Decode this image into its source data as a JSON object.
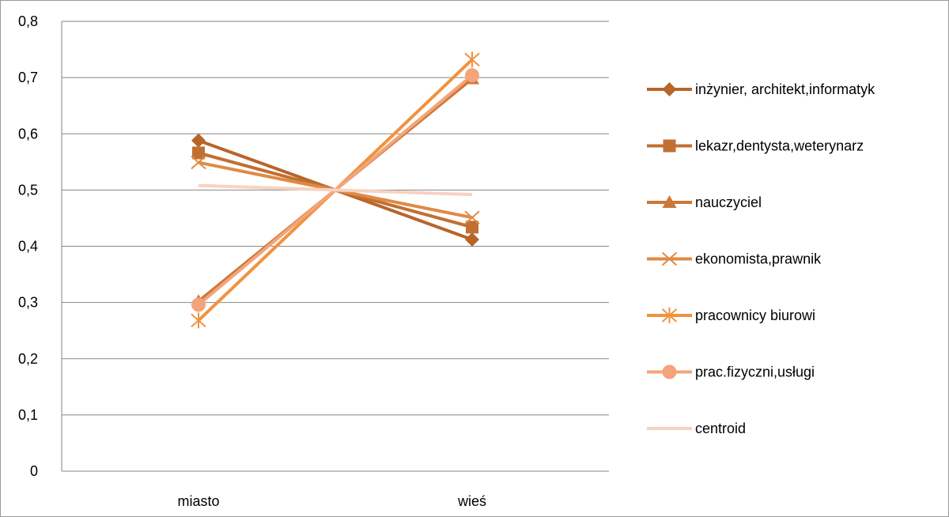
{
  "chart_data": {
    "type": "line",
    "title": "",
    "xlabel": "",
    "ylabel": "",
    "categories": [
      "miasto",
      "wieś"
    ],
    "ylim": [
      0,
      0.8
    ],
    "yticks": [
      0,
      0.1,
      0.2,
      0.3,
      0.4,
      0.5,
      0.6,
      0.7,
      0.8
    ],
    "ytick_labels": [
      "0",
      "0,1",
      "0,2",
      "0,3",
      "0,4",
      "0,5",
      "0,6",
      "0,7",
      "0,8"
    ],
    "grid": "horizontal",
    "legend_position": "right",
    "series": [
      {
        "name": "inżynier, architekt,informatyk",
        "values": [
          0.588,
          0.412
        ],
        "color": "#b8652a",
        "marker": "diamond"
      },
      {
        "name": "lekazr,dentysta,weterynarz",
        "values": [
          0.566,
          0.434
        ],
        "color": "#c26f32",
        "marker": "square"
      },
      {
        "name": "nauczyciel",
        "values": [
          0.302,
          0.698
        ],
        "color": "#cc7838",
        "marker": "triangle"
      },
      {
        "name": "ekonomista,prawnik",
        "values": [
          0.549,
          0.451
        ],
        "color": "#e08a44",
        "marker": "x"
      },
      {
        "name": "pracownicy biurowi",
        "values": [
          0.268,
          0.732
        ],
        "color": "#f0933f",
        "marker": "star"
      },
      {
        "name": "prac.fizyczni,usługi",
        "values": [
          0.296,
          0.704
        ],
        "color": "#f4a47a",
        "marker": "circle"
      },
      {
        "name": "centroid",
        "values": [
          0.508,
          0.492
        ],
        "color": "#f6d2c0",
        "marker": "none"
      }
    ]
  }
}
